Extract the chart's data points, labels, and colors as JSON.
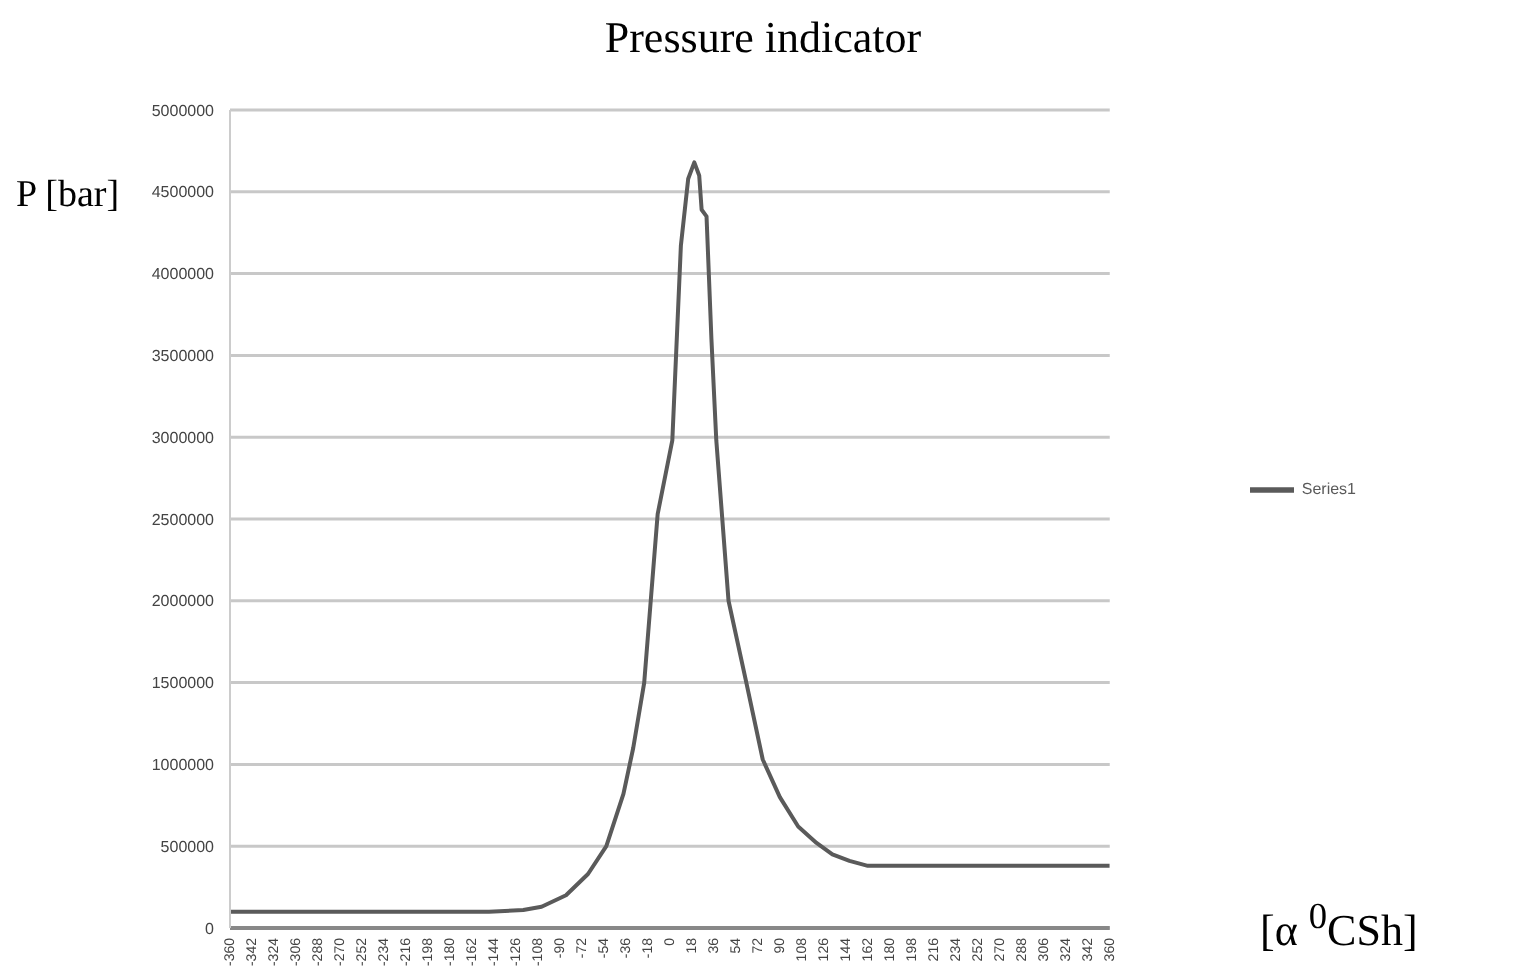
{
  "chart_data": {
    "type": "line",
    "title": "Pressure indicator",
    "xlabel": "[α $^{0}$CSh]",
    "ylabel": "P [bar]",
    "x": [
      -360,
      -300,
      -240,
      -180,
      -148,
      -120,
      -105,
      -85,
      -67,
      -52,
      -38,
      -30,
      -21,
      -10,
      2,
      9,
      15,
      20,
      24,
      26,
      30,
      34,
      38,
      48,
      62,
      76,
      90,
      105,
      120,
      133,
      147,
      162,
      200,
      260,
      320,
      360
    ],
    "series": [
      {
        "name": "Series1",
        "color": "#5a5a5a",
        "values": [
          100000,
          100000,
          100000,
          100000,
          100000,
          110000,
          130000,
          200000,
          330000,
          500000,
          820000,
          1100000,
          1500000,
          2530000,
          2980000,
          4170000,
          4580000,
          4680000,
          4600000,
          4390000,
          4350000,
          3600000,
          2980000,
          2000000,
          1520000,
          1030000,
          800000,
          620000,
          520000,
          450000,
          410000,
          380000,
          380000,
          380000,
          380000,
          380000
        ]
      }
    ],
    "xlim": [
      -360,
      360
    ],
    "xticks": [
      -360,
      -342,
      -324,
      -306,
      -288,
      -270,
      -252,
      -234,
      -216,
      -198,
      -180,
      -162,
      -144,
      -126,
      -108,
      -90,
      -72,
      -54,
      -36,
      -18,
      0,
      18,
      36,
      54,
      72,
      90,
      108,
      126,
      144,
      162,
      180,
      198,
      216,
      234,
      252,
      270,
      288,
      306,
      324,
      342,
      360
    ],
    "ylim": [
      0,
      5000000
    ],
    "yticks": [
      0,
      500000,
      1000000,
      1500000,
      2000000,
      2500000,
      3000000,
      3500000,
      4000000,
      4500000,
      5000000
    ],
    "grid": "y",
    "legend": "right",
    "marker": "none",
    "line_style": "solid"
  }
}
